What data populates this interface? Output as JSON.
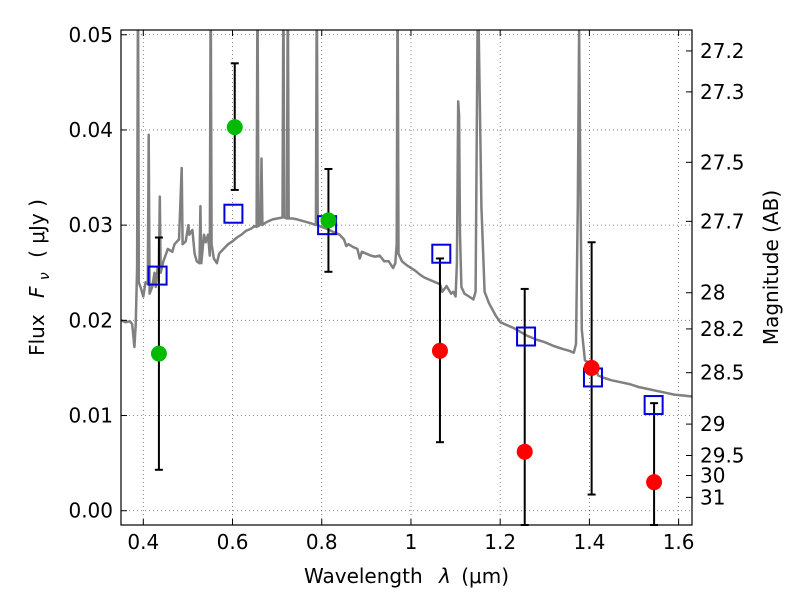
{
  "chart_data": {
    "type": "scatter",
    "xlabel_prefix": "Wavelength",
    "xlabel_symbol": "λ",
    "xlabel_unit": "(μm)",
    "ylabel_prefix": "Flux",
    "ylabel_symbol": "F",
    "ylabel_sub": "ν",
    "ylabel_unit": "( μJy )",
    "ylabel_right": "Magnitude (AB)",
    "xlim": [
      0.35,
      1.63
    ],
    "ylim": [
      -0.0015,
      0.0505
    ],
    "grid": true,
    "x_ticks": [
      {
        "value": 0.4,
        "label": "0.4"
      },
      {
        "value": 0.6,
        "label": "0.6"
      },
      {
        "value": 0.8,
        "label": "0.8"
      },
      {
        "value": 1.0,
        "label": "1"
      },
      {
        "value": 1.2,
        "label": "1.2"
      },
      {
        "value": 1.4,
        "label": "1.4"
      },
      {
        "value": 1.6,
        "label": "1.6"
      }
    ],
    "y_ticks": [
      {
        "value": 0.0,
        "label": "0.00"
      },
      {
        "value": 0.01,
        "label": "0.01"
      },
      {
        "value": 0.02,
        "label": "0.02"
      },
      {
        "value": 0.03,
        "label": "0.03"
      },
      {
        "value": 0.04,
        "label": "0.04"
      },
      {
        "value": 0.05,
        "label": "0.05"
      }
    ],
    "mag_ticks": [
      {
        "label": "27.2",
        "flux": 0.0483
      },
      {
        "label": "27.3",
        "flux": 0.044
      },
      {
        "label": "27.5",
        "flux": 0.0366
      },
      {
        "label": "27.7",
        "flux": 0.0304
      },
      {
        "label": "28",
        "flux": 0.0229
      },
      {
        "label": "28.2",
        "flux": 0.0191
      },
      {
        "label": "28.5",
        "flux": 0.0145
      },
      {
        "label": "29",
        "flux": 0.0091
      },
      {
        "label": "29.5",
        "flux": 0.0058
      },
      {
        "label": "30",
        "flux": 0.0037
      },
      {
        "label": "31",
        "flux": 0.0014
      }
    ],
    "series": [
      {
        "name": "green_detections",
        "color": "#00bb00",
        "marker": "circle",
        "points": [
          {
            "x": 0.435,
            "y": 0.0165,
            "yerr_low": 0.0043,
            "yerr_high": 0.0287
          },
          {
            "x": 0.605,
            "y": 0.0403,
            "yerr_low": 0.0337,
            "yerr_high": 0.047
          },
          {
            "x": 0.815,
            "y": 0.0305,
            "yerr_low": 0.0251,
            "yerr_high": 0.0359
          }
        ]
      },
      {
        "name": "red_detections",
        "color": "#ff0000",
        "marker": "circle",
        "points": [
          {
            "x": 1.065,
            "y": 0.0168,
            "yerr_low": 0.0072,
            "yerr_high": 0.0265
          },
          {
            "x": 1.255,
            "y": 0.0062,
            "yerr_low": -0.0015,
            "yerr_high": 0.0233
          },
          {
            "x": 1.405,
            "y": 0.015,
            "yerr_low": 0.0017,
            "yerr_high": 0.0282
          },
          {
            "x": 1.545,
            "y": 0.003,
            "yerr_low": -0.0015,
            "yerr_high": 0.0113
          }
        ]
      },
      {
        "name": "model_photometry",
        "color": "#0000dd",
        "marker": "open-square",
        "points": [
          {
            "x": 0.432,
            "y": 0.0247
          },
          {
            "x": 0.602,
            "y": 0.0312
          },
          {
            "x": 0.812,
            "y": 0.03
          },
          {
            "x": 1.068,
            "y": 0.027
          },
          {
            "x": 1.258,
            "y": 0.0183
          },
          {
            "x": 1.408,
            "y": 0.014
          },
          {
            "x": 1.544,
            "y": 0.0111
          }
        ]
      },
      {
        "name": "template_spectrum",
        "color": "#808080",
        "type": "line",
        "points": [
          [
            0.35,
            0.02
          ],
          [
            0.36,
            0.0198
          ],
          [
            0.37,
            0.0199
          ],
          [
            0.375,
            0.0196
          ],
          [
            0.38,
            0.0172
          ],
          [
            0.383,
            0.0195
          ],
          [
            0.386,
            0.0255
          ],
          [
            0.388,
            0.056
          ],
          [
            0.39,
            0.024
          ],
          [
            0.395,
            0.0233
          ],
          [
            0.4,
            0.0225
          ],
          [
            0.405,
            0.024
          ],
          [
            0.41,
            0.0238
          ],
          [
            0.412,
            0.0395
          ],
          [
            0.414,
            0.0228
          ],
          [
            0.42,
            0.0235
          ],
          [
            0.425,
            0.025
          ],
          [
            0.428,
            0.0235
          ],
          [
            0.432,
            0.0255
          ],
          [
            0.435,
            0.0255
          ],
          [
            0.437,
            0.033
          ],
          [
            0.439,
            0.025
          ],
          [
            0.445,
            0.0262
          ],
          [
            0.455,
            0.0275
          ],
          [
            0.465,
            0.0272
          ],
          [
            0.47,
            0.028
          ],
          [
            0.48,
            0.0285
          ],
          [
            0.486,
            0.036
          ],
          [
            0.488,
            0.028
          ],
          [
            0.495,
            0.0283
          ],
          [
            0.501,
            0.03
          ],
          [
            0.503,
            0.029
          ],
          [
            0.51,
            0.0295
          ],
          [
            0.515,
            0.027
          ],
          [
            0.52,
            0.0262
          ],
          [
            0.526,
            0.026
          ],
          [
            0.528,
            0.032
          ],
          [
            0.53,
            0.026
          ],
          [
            0.536,
            0.029
          ],
          [
            0.54,
            0.0282
          ],
          [
            0.545,
            0.029
          ],
          [
            0.549,
            0.0268
          ],
          [
            0.551,
            0.056
          ],
          [
            0.553,
            0.028
          ],
          [
            0.558,
            0.0265
          ],
          [
            0.565,
            0.026
          ],
          [
            0.57,
            0.027
          ],
          [
            0.58,
            0.0275
          ],
          [
            0.59,
            0.028
          ],
          [
            0.6,
            0.0283
          ],
          [
            0.61,
            0.0287
          ],
          [
            0.62,
            0.029
          ],
          [
            0.63,
            0.0294
          ],
          [
            0.64,
            0.0296
          ],
          [
            0.65,
            0.0299
          ],
          [
            0.654,
            0.0298
          ],
          [
            0.656,
            0.056
          ],
          [
            0.658,
            0.0299
          ],
          [
            0.663,
            0.0301
          ],
          [
            0.665,
            0.037
          ],
          [
            0.667,
            0.03
          ],
          [
            0.672,
            0.0302
          ],
          [
            0.68,
            0.0304
          ],
          [
            0.69,
            0.0306
          ],
          [
            0.7,
            0.0307
          ],
          [
            0.712,
            0.0308
          ],
          [
            0.714,
            0.056
          ],
          [
            0.716,
            0.0308
          ],
          [
            0.722,
            0.0307
          ],
          [
            0.724,
            0.056
          ],
          [
            0.726,
            0.0307
          ],
          [
            0.735,
            0.0307
          ],
          [
            0.745,
            0.0306
          ],
          [
            0.76,
            0.0304
          ],
          [
            0.775,
            0.0302
          ],
          [
            0.787,
            0.03
          ],
          [
            0.789,
            0.056
          ],
          [
            0.791,
            0.03
          ],
          [
            0.8,
            0.0298
          ],
          [
            0.812,
            0.0296
          ],
          [
            0.825,
            0.0293
          ],
          [
            0.84,
            0.029
          ],
          [
            0.85,
            0.0285
          ],
          [
            0.855,
            0.0278
          ],
          [
            0.86,
            0.028
          ],
          [
            0.87,
            0.0277
          ],
          [
            0.88,
            0.0275
          ],
          [
            0.885,
            0.0265
          ],
          [
            0.89,
            0.0272
          ],
          [
            0.9,
            0.027
          ],
          [
            0.91,
            0.0268
          ],
          [
            0.92,
            0.0267
          ],
          [
            0.93,
            0.0268
          ],
          [
            0.94,
            0.0262
          ],
          [
            0.95,
            0.0262
          ],
          [
            0.96,
            0.0255
          ],
          [
            0.965,
            0.026
          ],
          [
            0.968,
            0.028
          ],
          [
            0.97,
            0.056
          ],
          [
            0.972,
            0.027
          ],
          [
            0.98,
            0.0262
          ],
          [
            0.99,
            0.0258
          ],
          [
            1.0,
            0.0255
          ],
          [
            1.01,
            0.0252
          ],
          [
            1.02,
            0.0248
          ],
          [
            1.03,
            0.0245
          ],
          [
            1.045,
            0.0242
          ],
          [
            1.055,
            0.024
          ],
          [
            1.065,
            0.0238
          ],
          [
            1.07,
            0.023
          ],
          [
            1.08,
            0.0236
          ],
          [
            1.09,
            0.0228
          ],
          [
            1.095,
            0.023
          ],
          [
            1.1,
            0.0225
          ],
          [
            1.103,
            0.026
          ],
          [
            1.106,
            0.043
          ],
          [
            1.108,
            0.0415
          ],
          [
            1.11,
            0.029
          ],
          [
            1.113,
            0.0235
          ],
          [
            1.12,
            0.0228
          ],
          [
            1.13,
            0.0225
          ],
          [
            1.14,
            0.0222
          ],
          [
            1.145,
            0.023
          ],
          [
            1.15,
            0.056
          ],
          [
            1.158,
            0.032
          ],
          [
            1.165,
            0.023
          ],
          [
            1.175,
            0.0218
          ],
          [
            1.19,
            0.0205
          ],
          [
            1.2,
            0.0198
          ],
          [
            1.215,
            0.0195
          ],
          [
            1.23,
            0.0192
          ],
          [
            1.245,
            0.0188
          ],
          [
            1.26,
            0.0184
          ],
          [
            1.28,
            0.018
          ],
          [
            1.3,
            0.0177
          ],
          [
            1.32,
            0.0173
          ],
          [
            1.34,
            0.017
          ],
          [
            1.355,
            0.0168
          ],
          [
            1.365,
            0.0166
          ],
          [
            1.37,
            0.0175
          ],
          [
            1.374,
            0.032
          ],
          [
            1.377,
            0.0505
          ],
          [
            1.38,
            0.033
          ],
          [
            1.383,
            0.019
          ],
          [
            1.39,
            0.0158
          ],
          [
            1.4,
            0.0155
          ],
          [
            1.41,
            0.0152
          ],
          [
            1.42,
            0.0142
          ],
          [
            1.43,
            0.014
          ],
          [
            1.45,
            0.0137
          ],
          [
            1.47,
            0.0135
          ],
          [
            1.49,
            0.0133
          ],
          [
            1.51,
            0.013
          ],
          [
            1.53,
            0.0128
          ],
          [
            1.55,
            0.0126
          ],
          [
            1.57,
            0.0124
          ],
          [
            1.59,
            0.0122
          ],
          [
            1.61,
            0.0121
          ],
          [
            1.63,
            0.012
          ]
        ]
      }
    ]
  }
}
